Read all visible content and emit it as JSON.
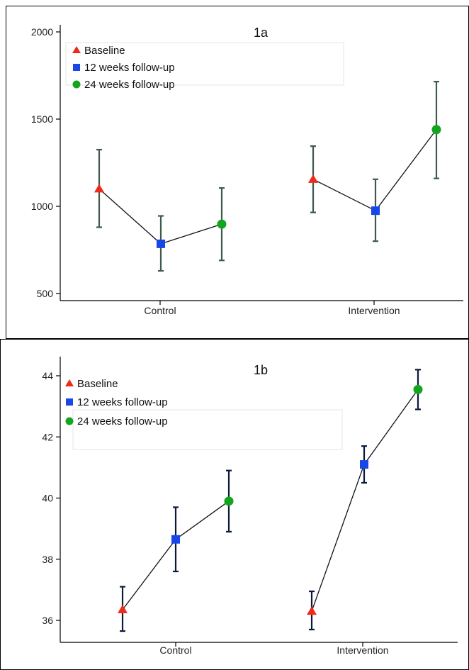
{
  "chart_data": [
    {
      "type": "line",
      "title": "1a",
      "xlabel": "",
      "ylabel": "",
      "ylim": [
        450,
        2050
      ],
      "yticks": [
        500,
        1000,
        1500,
        2000
      ],
      "categories": [
        "Control",
        "Intervention"
      ],
      "grid": false,
      "legend_position": "top-left",
      "error_bar_color": "#3d5a4c",
      "series": [
        {
          "name": "Baseline",
          "marker": "triangle",
          "color": "#ee2a1b",
          "values": [
            1100,
            1155
          ],
          "ci_low": [
            880,
            965
          ],
          "ci_high": [
            1325,
            1345
          ]
        },
        {
          "name": "12 weeks follow-up",
          "marker": "square",
          "color": "#1747e8",
          "values": [
            785,
            975
          ],
          "ci_low": [
            630,
            800
          ],
          "ci_high": [
            945,
            1155
          ]
        },
        {
          "name": "24 weeks follow-up",
          "marker": "circle",
          "color": "#13a51e",
          "values": [
            898,
            1440
          ],
          "ci_low": [
            690,
            1160
          ],
          "ci_high": [
            1105,
            1715
          ]
        }
      ]
    },
    {
      "type": "line",
      "title": "1b",
      "xlabel": "",
      "ylabel": "",
      "ylim": [
        35.2,
        44.4
      ],
      "yticks": [
        36,
        38,
        40,
        42,
        44
      ],
      "categories": [
        "Control",
        "Intervention"
      ],
      "grid": false,
      "legend_position": "top-left",
      "error_bar_color": "#0c1a3a",
      "series": [
        {
          "name": "Baseline",
          "marker": "triangle",
          "color": "#ee2a1b",
          "values": [
            36.35,
            36.3
          ],
          "ci_low": [
            35.65,
            35.7
          ],
          "ci_high": [
            37.1,
            36.95
          ]
        },
        {
          "name": "12 weeks follow-up",
          "marker": "square",
          "color": "#1747e8",
          "values": [
            38.65,
            41.1
          ],
          "ci_low": [
            37.6,
            40.5
          ],
          "ci_high": [
            39.7,
            41.7
          ]
        },
        {
          "name": "24 weeks follow-up",
          "marker": "circle",
          "color": "#13a51e",
          "values": [
            39.9,
            43.55
          ],
          "ci_low": [
            38.9,
            42.9
          ],
          "ci_high": [
            40.9,
            44.2
          ]
        }
      ]
    }
  ]
}
